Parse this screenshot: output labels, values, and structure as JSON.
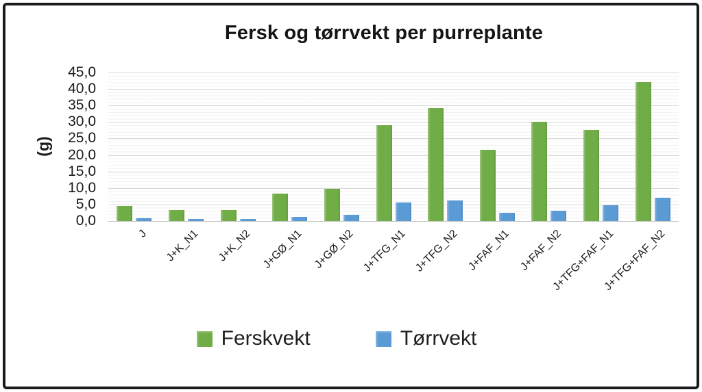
{
  "frame": {
    "border_color": "#1c1c1c",
    "background": "#ffffff"
  },
  "chart_data": {
    "type": "bar",
    "title": "Fersk og tørrvekt per purreplante",
    "ylabel": "(g)",
    "xlabel": "",
    "categories": [
      "J",
      "J+K_N1",
      "J+K_N2",
      "J+GØ_N1",
      "J+GØ_N2",
      "J+TFG_N1",
      "J+TFG_N2",
      "J+FAF_N1",
      "J+FAF_N2",
      "J+TFG+FAF_N1",
      "J+TFG+FAF_N2"
    ],
    "series": [
      {
        "name": "Ferskvekt",
        "color": "#70ad47",
        "values": [
          4.5,
          3.3,
          3.3,
          8.2,
          9.8,
          29.0,
          34.3,
          21.6,
          30.0,
          27.5,
          42.2
        ]
      },
      {
        "name": "Tørrvekt",
        "color": "#5b9bd5",
        "values": [
          0.8,
          0.6,
          0.7,
          1.3,
          1.8,
          5.5,
          6.2,
          2.5,
          3.2,
          4.7,
          7.0
        ]
      }
    ],
    "ylim": [
      0,
      45
    ],
    "ytick_step": 5,
    "ytick_labels_top_to_bottom": [
      "45,0",
      "40,0",
      "35,0",
      "30,0",
      "25,0",
      "20,0",
      "15,0",
      "10,0",
      "5,0",
      "0,0"
    ],
    "grid": true,
    "legend_position": "bottom"
  }
}
